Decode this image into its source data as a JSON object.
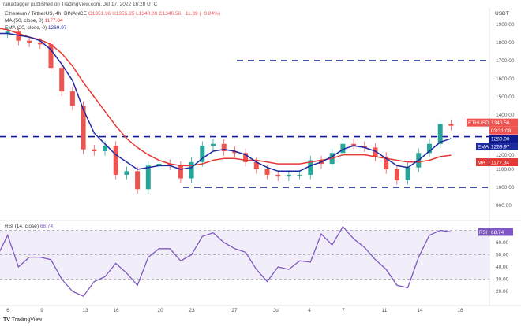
{
  "publisher": "ranadagger published on TradingView.com, Jul 17, 2022 16:28 UTC",
  "legend": {
    "symbol": "Ethereum / TetherUS, 4h, BINANCE",
    "o": "O1351.96",
    "h": "H1355.35",
    "l": "L1340.00",
    "c": "C1340.56",
    "chg": "−11.39 (−0.84%)",
    "ma": "MA (50, close, 0)",
    "ma_val": "1177.84",
    "ema": "EMA (20, close, 0)",
    "ema_val": "1269.97"
  },
  "rsi_legend": {
    "label": "RSI (14, close)",
    "val": "68.74"
  },
  "axis_currency": "USDT",
  "brand": "TradingView",
  "colors": {
    "up": "#26a69a",
    "down": "#ef5350",
    "ema": "#1e2ba0",
    "ma": "#e53935",
    "level": "#0d1a8c",
    "rsi": "#7e57c2"
  },
  "chart_data": [
    {
      "type": "candlestick",
      "dates": [
        "Jun 5",
        "Jun 6",
        "Jun 7",
        "Jun 8",
        "Jun 9",
        "Jun 10",
        "Jun 11",
        "Jun 12",
        "Jun 13",
        "Jun 14",
        "Jun 15",
        "Jun 16",
        "Jun 17",
        "Jun 18",
        "Jun 19",
        "Jun 20",
        "Jun 21",
        "Jun 22",
        "Jun 23",
        "Jun 24",
        "Jun 25",
        "Jun 26",
        "Jun 27",
        "Jun 28",
        "Jun 29",
        "Jun 30",
        "Jul 1",
        "Jul 2",
        "Jul 3",
        "Jul 4",
        "Jul 5",
        "Jul 6",
        "Jul 7",
        "Jul 8",
        "Jul 9",
        "Jul 10",
        "Jul 11",
        "Jul 12",
        "Jul 13",
        "Jul 14",
        "Jul 15",
        "Jul 16",
        "Jul 17"
      ],
      "close": [
        1850,
        1860,
        1810,
        1800,
        1790,
        1660,
        1530,
        1450,
        1210,
        1200,
        1230,
        1070,
        1090,
        990,
        1120,
        1130,
        1120,
        1050,
        1140,
        1230,
        1240,
        1200,
        1190,
        1140,
        1100,
        1070,
        1060,
        1070,
        1070,
        1150,
        1130,
        1190,
        1240,
        1230,
        1220,
        1170,
        1100,
        1040,
        1110,
        1190,
        1240,
        1350,
        1340.56
      ],
      "ema20": [
        1850,
        1850,
        1840,
        1830,
        1810,
        1760,
        1680,
        1590,
        1430,
        1300,
        1240,
        1180,
        1140,
        1100,
        1110,
        1120,
        1120,
        1100,
        1110,
        1160,
        1200,
        1210,
        1200,
        1180,
        1140,
        1110,
        1090,
        1090,
        1090,
        1120,
        1140,
        1170,
        1210,
        1230,
        1220,
        1200,
        1160,
        1120,
        1110,
        1150,
        1200,
        1250,
        1269.97
      ],
      "ma50": [
        1880,
        1870,
        1850,
        1830,
        1815,
        1790,
        1740,
        1670,
        1580,
        1500,
        1420,
        1340,
        1270,
        1220,
        1180,
        1150,
        1130,
        1120,
        1120,
        1130,
        1150,
        1160,
        1160,
        1150,
        1150,
        1140,
        1130,
        1130,
        1130,
        1140,
        1150,
        1160,
        1180,
        1180,
        1180,
        1170,
        1160,
        1150,
        1140,
        1140,
        1150,
        1170,
        1177.84
      ],
      "levels": [
        1700,
        1280,
        1000
      ],
      "last_price": "1340.56",
      "countdown": "03:31:08",
      "symbol_tag": "ETHUSDT",
      "level_tag": "1280.00",
      "ema_tag": "EMA",
      "ma_tag": "MA",
      "y_ticks": [
        1900,
        1800,
        1700,
        1600,
        1500,
        1400,
        1200,
        1100,
        1000,
        900
      ],
      "x_ticks": [
        "6",
        "9",
        "13",
        "16",
        "20",
        "23",
        "27",
        "Jul",
        "4",
        "7",
        "11",
        "14",
        "18"
      ],
      "ylim": [
        850,
        1950
      ]
    },
    {
      "type": "line",
      "title": "RSI (14, close)",
      "rsi": [
        48,
        66,
        40,
        48,
        48,
        46,
        30,
        20,
        16,
        28,
        32,
        43,
        35,
        25,
        48,
        55,
        55,
        45,
        50,
        65,
        68,
        60,
        55,
        52,
        38,
        28,
        40,
        38,
        45,
        44,
        67,
        58,
        73,
        63,
        56,
        46,
        38,
        25,
        23,
        48,
        66,
        70,
        68.74
      ],
      "y_ticks": [
        60,
        50,
        40,
        30,
        20
      ],
      "bands": [
        70,
        50,
        30
      ],
      "ylim": [
        10,
        78
      ]
    }
  ]
}
